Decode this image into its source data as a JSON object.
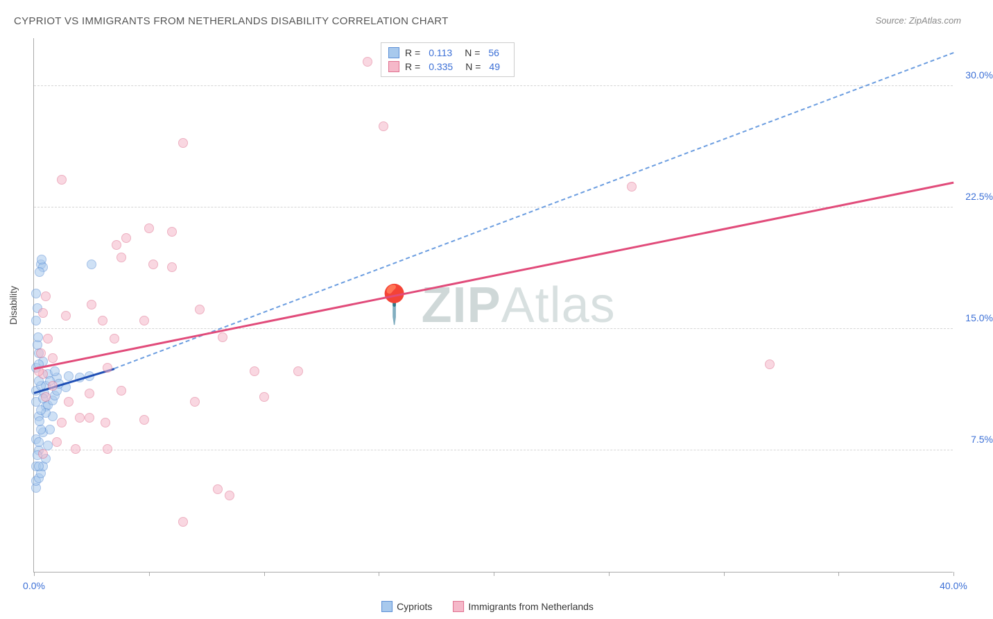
{
  "title": "CYPRIOT VS IMMIGRANTS FROM NETHERLANDS DISABILITY CORRELATION CHART",
  "source": "Source: ZipAtlas.com",
  "y_axis_title": "Disability",
  "watermark_brand_bold": "ZIP",
  "watermark_brand_light": "Atlas",
  "axes": {
    "xlim": [
      0,
      40
    ],
    "ylim": [
      0,
      33
    ],
    "x_ticks": [
      0,
      5,
      10,
      15,
      20,
      25,
      30,
      35,
      40
    ],
    "x_tick_labels": {
      "0": "0.0%",
      "40": "40.0%"
    },
    "y_gridlines": [
      7.5,
      15.0,
      22.5,
      30.0
    ],
    "y_tick_labels": [
      "7.5%",
      "15.0%",
      "22.5%",
      "30.0%"
    ]
  },
  "series": [
    {
      "id": "cypriots",
      "legend_label": "Cypriots",
      "fill": "#a8c9ed",
      "stroke": "#5b8fd6",
      "fill_opacity": 0.55,
      "R": "0.113",
      "N": "56",
      "trend": {
        "x1": 0,
        "y1": 11.0,
        "x2": 3.5,
        "y2": 12.5,
        "color": "#1f4fb5",
        "width": 2.5
      },
      "trend_extrapolated": {
        "x1": 3.5,
        "y1": 12.5,
        "x2": 40,
        "y2": 32.0,
        "color": "#6b9de0",
        "dashed": true
      },
      "points": [
        [
          0.1,
          5.2
        ],
        [
          0.1,
          5.6
        ],
        [
          0.2,
          5.8
        ],
        [
          0.3,
          6.1
        ],
        [
          0.1,
          6.5
        ],
        [
          0.4,
          6.5
        ],
        [
          0.2,
          6.5
        ],
        [
          0.5,
          7.0
        ],
        [
          0.2,
          7.5
        ],
        [
          0.6,
          7.8
        ],
        [
          0.1,
          8.2
        ],
        [
          0.4,
          8.6
        ],
        [
          0.7,
          8.8
        ],
        [
          0.3,
          8.8
        ],
        [
          0.8,
          9.6
        ],
        [
          0.2,
          9.6
        ],
        [
          0.5,
          10.2
        ],
        [
          0.1,
          10.5
        ],
        [
          0.6,
          10.3
        ],
        [
          0.8,
          10.6
        ],
        [
          0.9,
          10.9
        ],
        [
          0.1,
          11.2
        ],
        [
          1.0,
          11.2
        ],
        [
          0.5,
          11.5
        ],
        [
          0.3,
          11.5
        ],
        [
          1.4,
          11.4
        ],
        [
          0.2,
          11.8
        ],
        [
          1.0,
          12.0
        ],
        [
          1.5,
          12.1
        ],
        [
          2.0,
          12.0
        ],
        [
          0.6,
          12.2
        ],
        [
          2.4,
          12.1
        ],
        [
          0.1,
          12.6
        ],
        [
          0.4,
          13.0
        ],
        [
          0.2,
          13.5
        ],
        [
          0.15,
          14.0
        ],
        [
          0.18,
          14.5
        ],
        [
          0.1,
          15.5
        ],
        [
          0.15,
          16.3
        ],
        [
          0.1,
          17.2
        ],
        [
          0.3,
          19.0
        ],
        [
          0.4,
          18.8
        ],
        [
          0.25,
          18.5
        ],
        [
          0.32,
          19.3
        ],
        [
          2.5,
          19.0
        ],
        [
          0.2,
          12.8
        ],
        [
          0.5,
          9.8
        ],
        [
          0.3,
          10.0
        ],
        [
          0.7,
          11.8
        ],
        [
          1.1,
          11.6
        ],
        [
          0.9,
          12.4
        ],
        [
          0.45,
          11.0
        ],
        [
          0.38,
          10.7
        ],
        [
          0.25,
          9.3
        ],
        [
          0.2,
          8.0
        ],
        [
          0.15,
          7.2
        ]
      ]
    },
    {
      "id": "netherlands",
      "legend_label": "Immigrants from Netherlands",
      "fill": "#f5b8c9",
      "stroke": "#e0708f",
      "fill_opacity": 0.55,
      "R": "0.335",
      "N": "49",
      "trend": {
        "x1": 0,
        "y1": 12.5,
        "x2": 40,
        "y2": 24.0,
        "color": "#e14b7a",
        "width": 2.5
      },
      "points": [
        [
          0.4,
          7.3
        ],
        [
          1.8,
          7.6
        ],
        [
          1.0,
          8.0
        ],
        [
          3.2,
          7.6
        ],
        [
          1.2,
          9.2
        ],
        [
          2.0,
          9.5
        ],
        [
          2.4,
          9.5
        ],
        [
          3.1,
          9.2
        ],
        [
          4.8,
          9.4
        ],
        [
          7.0,
          10.5
        ],
        [
          3.8,
          11.2
        ],
        [
          10.0,
          10.8
        ],
        [
          1.5,
          10.5
        ],
        [
          2.4,
          11.0
        ],
        [
          11.5,
          12.4
        ],
        [
          9.6,
          12.4
        ],
        [
          3.2,
          12.6
        ],
        [
          0.4,
          12.2
        ],
        [
          0.2,
          12.4
        ],
        [
          0.8,
          13.2
        ],
        [
          0.3,
          13.5
        ],
        [
          3.5,
          14.4
        ],
        [
          0.6,
          14.4
        ],
        [
          3.0,
          15.5
        ],
        [
          4.8,
          15.5
        ],
        [
          8.2,
          14.5
        ],
        [
          0.4,
          16.0
        ],
        [
          1.4,
          15.8
        ],
        [
          7.2,
          16.2
        ],
        [
          2.5,
          16.5
        ],
        [
          0.5,
          17.0
        ],
        [
          3.8,
          19.4
        ],
        [
          5.2,
          19.0
        ],
        [
          6.0,
          18.8
        ],
        [
          4.0,
          20.6
        ],
        [
          6.0,
          21.0
        ],
        [
          5.0,
          21.2
        ],
        [
          3.6,
          20.2
        ],
        [
          1.2,
          24.2
        ],
        [
          14.5,
          31.5
        ],
        [
          15.2,
          27.5
        ],
        [
          26.0,
          23.8
        ],
        [
          32.0,
          12.8
        ],
        [
          6.5,
          26.5
        ],
        [
          8.0,
          5.1
        ],
        [
          6.5,
          3.1
        ],
        [
          8.5,
          4.7
        ],
        [
          0.8,
          11.5
        ],
        [
          0.5,
          10.8
        ]
      ]
    }
  ],
  "legend_labels": {
    "R": "R =",
    "N": "N ="
  }
}
